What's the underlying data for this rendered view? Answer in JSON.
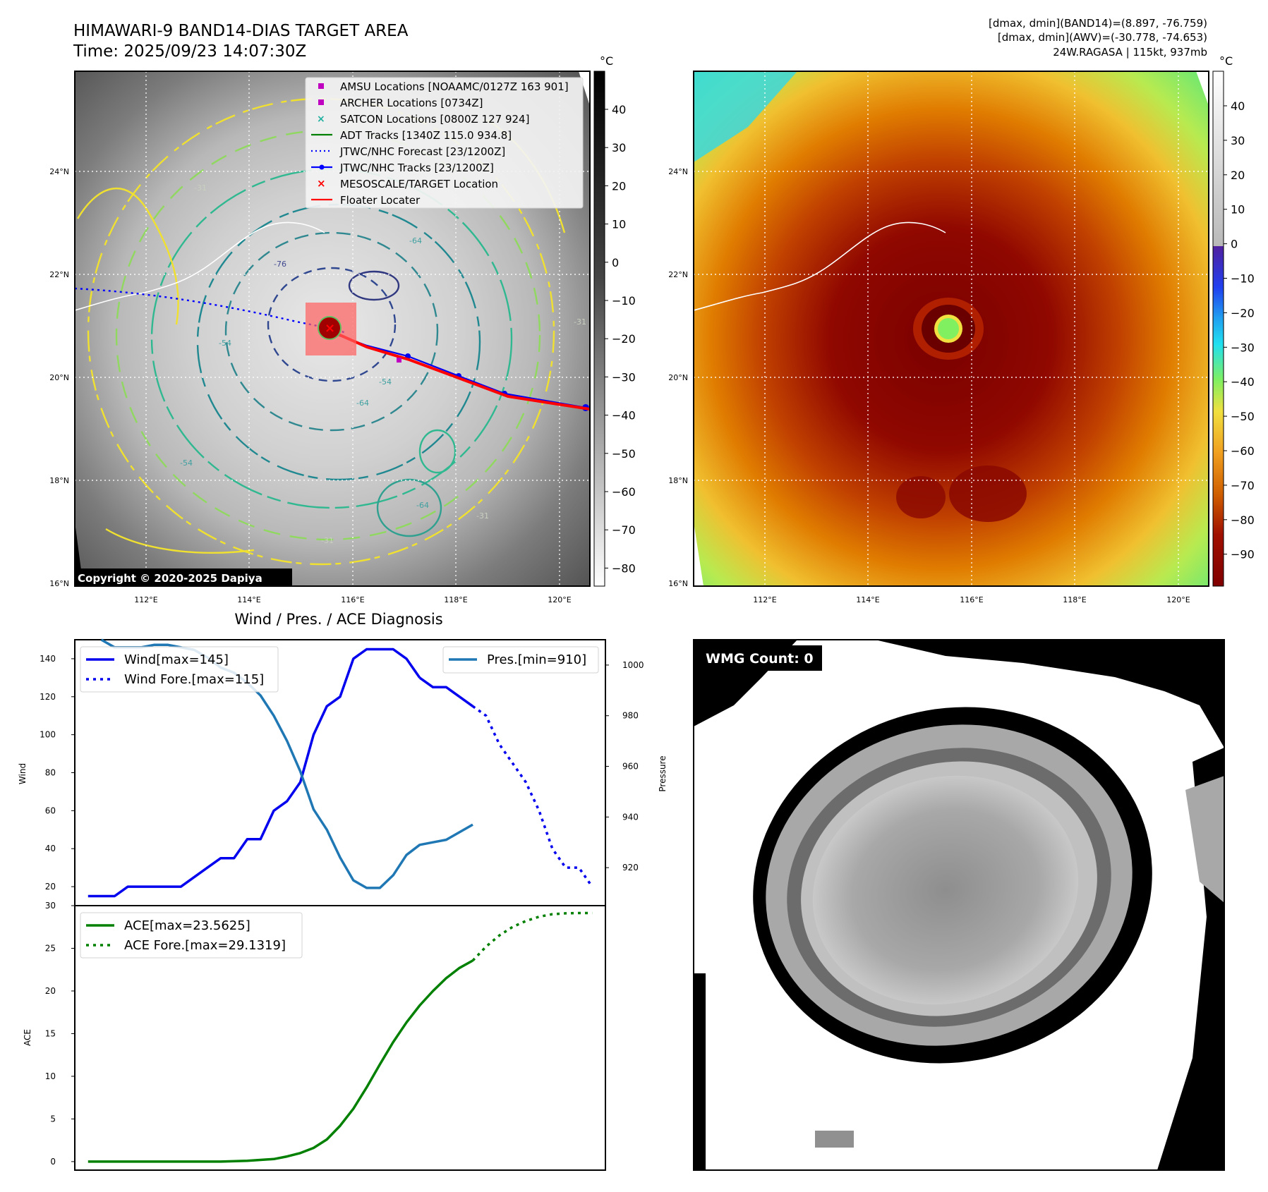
{
  "header": {
    "title_line1": "HIMAWARI-9 BAND14-DIAS TARGET AREA",
    "title_line2": "Time: 2025/09/23 14:07:30Z",
    "info_line1": "[dmax, dmin](BAND14)=(8.897, -76.759)",
    "info_line2": "[dmax, dmin](AWV)=(-30.778, -74.653)",
    "info_line3": "24W.RAGASA | 115kt, 937mb"
  },
  "map": {
    "lat_labels": [
      "24°N",
      "22°N",
      "20°N",
      "18°N",
      "16°N"
    ],
    "lon_labels": [
      "112°E",
      "114°E",
      "116°E",
      "118°E",
      "120°E"
    ],
    "unit_label": "°C",
    "copyright": "Copyright © 2020-2025 Dapiya",
    "contour_labels": [
      "-31",
      "-76",
      "-64",
      "-54",
      "-31",
      "-54",
      "-64",
      "-54",
      "-64",
      "-31",
      "-31"
    ]
  },
  "legend_left": {
    "items": [
      {
        "label": "AMSU Locations [NOAAMC/0127Z 163 901]",
        "color": "#c000c0",
        "marker": "square"
      },
      {
        "label": "ARCHER Locations [0734Z]",
        "color": "#c000c0",
        "marker": "square"
      },
      {
        "label": "SATCON Locations [0800Z 127 924]",
        "color": "#20b0a0",
        "marker": "x"
      },
      {
        "label": "ADT Tracks [1340Z 115.0 934.8]",
        "color": "#008000",
        "marker": "line"
      },
      {
        "label": "JTWC/NHC Forecast [23/1200Z]",
        "color": "#0000ff",
        "marker": "dotted"
      },
      {
        "label": "JTWC/NHC Tracks [23/1200Z]",
        "color": "#0000ff",
        "marker": "line-dot"
      },
      {
        "label": "MESOSCALE/TARGET Location",
        "color": "#ff0000",
        "marker": "x"
      },
      {
        "label": "Floater Locater",
        "color": "#ff0000",
        "marker": "line"
      }
    ]
  },
  "colorbar_gray": {
    "unit": "°C",
    "ticks": [
      "40",
      "30",
      "20",
      "10",
      "0",
      "−10",
      "−20",
      "−30",
      "−40",
      "−50",
      "−60",
      "−70",
      "−80"
    ]
  },
  "colorbar_color": {
    "unit": "°C",
    "ticks": [
      "40",
      "30",
      "20",
      "10",
      "0",
      "−10",
      "−20",
      "−30",
      "−40",
      "−50",
      "−60",
      "−70",
      "−80",
      "−90"
    ],
    "colors": {
      "dark_red": "#800000",
      "red": "#c02000",
      "orange": "#e08000",
      "yellow": "#f0e040",
      "green": "#80f060",
      "cyan": "#20e0f0",
      "blue": "#2040f0",
      "purple": "#5020a0"
    }
  },
  "chart_data": [
    {
      "type": "line",
      "title": "Wind / Pres. / ACE Diagnosis",
      "ylabel": "Wind",
      "ylabel_right": "Pressure",
      "ylim": [
        10,
        150
      ],
      "ylim_right": [
        905,
        1010
      ],
      "yticks": [
        20,
        40,
        60,
        80,
        100,
        120,
        140
      ],
      "yticks_right": [
        920,
        940,
        960,
        980,
        1000
      ],
      "x": [
        0,
        1,
        2,
        3,
        4,
        5,
        6,
        7,
        8,
        9,
        10,
        11,
        12,
        13,
        14,
        15,
        16,
        17,
        18,
        19,
        20,
        21,
        22,
        23,
        24,
        25,
        26,
        27,
        28,
        29,
        30,
        31,
        32,
        33,
        34,
        35,
        36
      ],
      "legend": [
        "Wind[max=145]",
        "Wind Fore.[max=115]",
        "Pres.[min=910]"
      ],
      "series": [
        {
          "name": "Wind",
          "color": "#0000ee",
          "style": "solid",
          "x": [
            0,
            1,
            2,
            3,
            4,
            5,
            6,
            7,
            8,
            9,
            10,
            11,
            12,
            13,
            14,
            15,
            16,
            17,
            18,
            19,
            20,
            21,
            22,
            23,
            24,
            25
          ],
          "values": [
            15,
            15,
            15,
            20,
            20,
            20,
            20,
            20,
            25,
            30,
            35,
            35,
            45,
            45,
            60,
            65,
            75,
            100,
            115,
            120,
            140,
            145,
            145,
            145,
            140,
            130
          ]
        },
        {
          "name": "Wind",
          "color": "#0000ee",
          "style": "solid",
          "x": [
            25,
            26,
            27,
            28
          ],
          "values": [
            130,
            125,
            125,
            120
          ]
        },
        {
          "name": "Wind",
          "color": "#0000ee",
          "style": "solid",
          "x": [
            28,
            29
          ],
          "values": [
            120,
            115
          ]
        },
        {
          "name": "Wind Fore.",
          "color": "#0000ee",
          "style": "dotted",
          "x": [
            29,
            30,
            31,
            32,
            33,
            34,
            35,
            36,
            37,
            38
          ],
          "values": [
            115,
            110,
            95,
            85,
            75,
            60,
            40,
            30,
            30,
            20
          ]
        },
        {
          "name": "Pres.",
          "color": "#1f77b4",
          "style": "solid",
          "axis": "right",
          "x": [
            1,
            2,
            3,
            4,
            5,
            6,
            7,
            8,
            9,
            10,
            11,
            12,
            13,
            14,
            15,
            16,
            17,
            18,
            19,
            20,
            21,
            22,
            23,
            24,
            25,
            26,
            27,
            28,
            29
          ],
          "values": [
            1010,
            1007,
            1007,
            1007,
            1008,
            1008,
            1007,
            1006,
            1003,
            999,
            997,
            993,
            988,
            980,
            970,
            958,
            943,
            935,
            924,
            915,
            912,
            912,
            917,
            925,
            929,
            930,
            931,
            934,
            937
          ]
        }
      ]
    },
    {
      "type": "line",
      "ylabel": "ACE",
      "ylim": [
        -1,
        30
      ],
      "yticks": [
        0,
        5,
        10,
        15,
        20,
        25,
        30
      ],
      "legend": [
        "ACE[max=23.5625]",
        "ACE Fore.[max=29.1319]"
      ],
      "series": [
        {
          "name": "ACE",
          "color": "#008000",
          "style": "solid",
          "x": [
            0,
            2,
            4,
            6,
            8,
            10,
            12,
            14,
            15,
            16,
            17,
            18,
            19,
            20,
            21,
            22,
            23,
            24,
            25,
            26,
            27,
            28,
            29
          ],
          "values": [
            0,
            0,
            0,
            0,
            0,
            0,
            0.1,
            0.3,
            0.6,
            1.0,
            1.6,
            2.6,
            4.2,
            6.2,
            8.7,
            11.4,
            14.0,
            16.3,
            18.3,
            20.0,
            21.5,
            22.7,
            23.5625
          ]
        },
        {
          "name": "ACE Fore.",
          "color": "#008000",
          "style": "dotted",
          "x": [
            29,
            30,
            31,
            32,
            33,
            34,
            35,
            36,
            37,
            38
          ],
          "values": [
            23.5625,
            25.2,
            26.5,
            27.5,
            28.2,
            28.7,
            29.0,
            29.1,
            29.13,
            29.1319
          ]
        }
      ]
    }
  ],
  "wmg_panel": {
    "count_label": "WMG Count: 0"
  }
}
